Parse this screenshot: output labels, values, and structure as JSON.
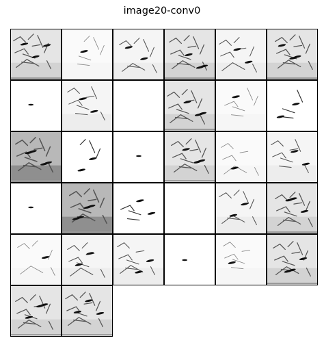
{
  "figure": {
    "title": "image20-conv0"
  },
  "grid": {
    "columns": 6,
    "rows": 6,
    "tile_count": 32
  },
  "tiles": [
    {
      "style": "dense"
    },
    {
      "style": "light"
    },
    {
      "style": "medium"
    },
    {
      "style": "dense"
    },
    {
      "style": "medium"
    },
    {
      "style": "dense"
    },
    {
      "style": "dot"
    },
    {
      "style": "medium"
    },
    {
      "style": "blank"
    },
    {
      "style": "dense"
    },
    {
      "style": "light"
    },
    {
      "style": "sparse"
    },
    {
      "style": "heavy"
    },
    {
      "style": "sparse"
    },
    {
      "style": "dot"
    },
    {
      "style": "dense"
    },
    {
      "style": "light"
    },
    {
      "style": "medium"
    },
    {
      "style": "dot"
    },
    {
      "style": "heavy"
    },
    {
      "style": "sparse"
    },
    {
      "style": "blank"
    },
    {
      "style": "medium"
    },
    {
      "style": "dense"
    },
    {
      "style": "light"
    },
    {
      "style": "medium"
    },
    {
      "style": "medium"
    },
    {
      "style": "dot"
    },
    {
      "style": "light"
    },
    {
      "style": "dense"
    },
    {
      "style": "dense"
    },
    {
      "style": "dense"
    }
  ]
}
